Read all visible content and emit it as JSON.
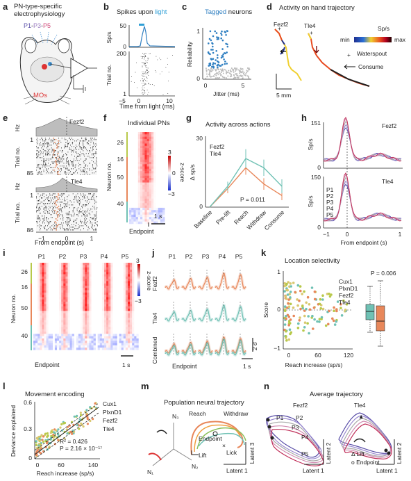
{
  "labels": {
    "a": "a",
    "b": "b",
    "c": "c",
    "d": "d",
    "e": "e",
    "f": "f",
    "g": "g",
    "h": "h",
    "i": "i",
    "j": "j",
    "k": "k",
    "l": "l",
    "m": "m",
    "n": "n"
  },
  "panel_a": {
    "title_line1": "PN-type-specific",
    "title_line2": "electrophysiology",
    "p1": "P1",
    "p3": "P3",
    "p5": "P5",
    "dash1": "-",
    "dash2": "-",
    "region": "MOs"
  },
  "panel_b": {
    "title_pre": "Spikes upon ",
    "title_light": "light",
    "ylabel_top": "Sp/s",
    "ylabel_bottom": "Trial no.",
    "yticks_top": [
      "50",
      "0"
    ],
    "yticks_bottom": [
      "200",
      "1"
    ],
    "xticks": [
      "−5",
      "0",
      "10"
    ],
    "xlabel": "Time from light (ms)"
  },
  "panel_c": {
    "title_tagged": "Tagged",
    "title_rest": " neurons",
    "ylabel": "Reliability",
    "yticks": [
      "1",
      "0"
    ],
    "xticks": [
      "0",
      "5"
    ],
    "xlabel": "Jitter (ms)"
  },
  "panel_d": {
    "title": "Activity on hand trajectory",
    "fezf2": "Fezf2",
    "tle4": "Tle4",
    "cbar_label": "Sp/s",
    "cbar_min": "min",
    "cbar_max": "max",
    "legend_water": "Waterspout",
    "legend_consume": "Consume",
    "scale": "5 mm"
  },
  "panel_e": {
    "hz": "Hz",
    "fezf2": "Fezf2",
    "tle4": "Tle4",
    "trial": "Trial no.",
    "ytick_top": "1",
    "ytick_bot1": "85",
    "ytick_bot2": "86",
    "xticks": [
      "−1",
      "0",
      "1"
    ],
    "xlabel": "From endpoint (s)"
  },
  "panel_f": {
    "title": "Individual PNs",
    "ylabel": "Neuron no.",
    "yticks": [
      "26",
      "16",
      "50",
      "40"
    ],
    "cbar_label": "z-score",
    "cbar_ticks": [
      "3",
      "0",
      "−3"
    ],
    "scale": "1 s",
    "xlabel": "Endpoint"
  },
  "panel_g": {
    "title": "Activity across actions",
    "ylabel": "Δ sp/s",
    "yticks": [
      "30",
      "0"
    ],
    "fezf2": "Fezf2",
    "tle4": "Tle4",
    "pval": "P = 0.011",
    "categories": [
      "Baseline",
      "Pre-lift",
      "Reach",
      "Withdraw",
      "Consume"
    ]
  },
  "chart_data_g": {
    "type": "line",
    "categories": [
      "Baseline",
      "Pre-lift",
      "Reach",
      "Withdraw",
      "Consume"
    ],
    "ylim": [
      0,
      30
    ],
    "series": [
      {
        "name": "Fezf2",
        "values": [
          0,
          8,
          17,
          10,
          5
        ],
        "err": [
          0,
          2,
          3,
          2.5,
          2
        ]
      },
      {
        "name": "Tle4",
        "values": [
          0,
          9,
          21,
          17,
          9
        ],
        "err": [
          0,
          2,
          4,
          3.5,
          3
        ]
      }
    ]
  },
  "panel_h": {
    "ylabel": "Sp/s",
    "ytick_top": "151",
    "ytick_mid": "150",
    "ytick_zero": "0",
    "fezf2": "Fezf2",
    "tle4": "Tle4",
    "legend": [
      "P1",
      "P2",
      "P3",
      "P4",
      "P5"
    ],
    "xticks": [
      "−1",
      "0",
      "1"
    ],
    "xlabel": "From endpoint (s)"
  },
  "panel_i": {
    "cols": [
      "P1",
      "P2",
      "P3",
      "P4",
      "P5"
    ],
    "ylabel": "Neuron no.",
    "yticks": [
      "26",
      "16",
      "50",
      "40"
    ],
    "cbar_label": "z-score",
    "cbar_ticks": [
      "3",
      "−3"
    ],
    "xlabel": "Endpoint",
    "scale": "1 s"
  },
  "panel_j": {
    "cols": [
      "P1",
      "P2",
      "P3",
      "P4",
      "P5"
    ],
    "rows": [
      "Fezf2",
      "Tle4",
      "Combined"
    ],
    "scale_v": "2 σ",
    "scale_h": "1 s",
    "xlabel": "Endpoint"
  },
  "panel_k": {
    "title": "Location selectivity",
    "ylabel": "Score",
    "yticks": [
      "1",
      "0",
      "−1"
    ],
    "xticks": [
      "0",
      "60",
      "120"
    ],
    "xlabel": "Reach increase (sp/s)",
    "pval": "P = 0.006",
    "legend": [
      "Cux1",
      "PlxnD1",
      "Fezf2",
      "Tle4"
    ]
  },
  "panel_l": {
    "title": "Movement encoding",
    "ylabel": "Deviance explained",
    "yticks": [
      "0.6",
      "0.3",
      "0"
    ],
    "xticks": [
      "0",
      "60",
      "140"
    ],
    "xlabel": "Reach increase (sp/s)",
    "r2": "R² = 0.426",
    "pval": "P = 2.16 × 10⁻¹⁷",
    "legend": [
      "Cux1",
      "PlxnD1",
      "Fezf2",
      "Tle4"
    ]
  },
  "panel_m": {
    "title": "Population neural trajectory",
    "n1": "N₁",
    "n2": "N₂",
    "n3": "N₃",
    "reach": "Reach",
    "withdraw": "Withdraw",
    "endpoint": "Endpoint",
    "lift": "Lift",
    "lick": "Lick",
    "latent3": "Latent 3",
    "latent1": "Latent 1"
  },
  "panel_n": {
    "title": "Average trajectory",
    "fezf2": "Fezf2",
    "tle4": "Tle4",
    "p1": "P1",
    "p2": "P2",
    "p3": "P3",
    "p4": "P4",
    "p5": "P5",
    "lift": "Δ Lift",
    "endpoint": "o Endpoint",
    "latent2": "Latent 2",
    "latent1": "Latent 1"
  },
  "colors": {
    "fezf2": "#e8875a",
    "tle4": "#6fc1b4",
    "cux1": "#b8c94a",
    "plxnd1": "#d9c870",
    "blue": "#2f7fc1",
    "grey": "#888888"
  }
}
